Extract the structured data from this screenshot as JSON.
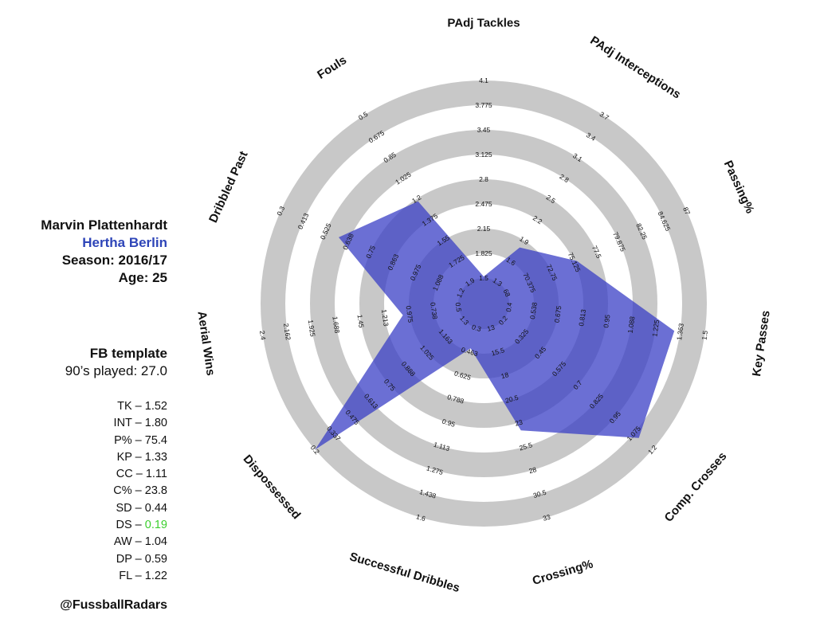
{
  "player": {
    "name": "Marvin Plattenhardt",
    "team": "Hertha Berlin",
    "season": "Season: 2016/17",
    "age": "Age: 25"
  },
  "template": {
    "name": "FB template",
    "minutes": "90’s played: 27.0"
  },
  "stats": [
    {
      "label": "TK – ",
      "value": "1.52"
    },
    {
      "label": "INT – ",
      "value": "1.80"
    },
    {
      "label": "P% – ",
      "value": "75.4"
    },
    {
      "label": "KP – ",
      "value": "1.33"
    },
    {
      "label": "CC – ",
      "value": "1.11"
    },
    {
      "label": "C% – ",
      "value": "23.8"
    },
    {
      "label": "SD – ",
      "value": "0.44"
    },
    {
      "label": "DS – ",
      "value": "0.19",
      "highlight": true
    },
    {
      "label": "AW – ",
      "value": " 1.04"
    },
    {
      "label": "DP – ",
      "value": "0.59"
    },
    {
      "label": "FL – ",
      "value": "1.22"
    }
  ],
  "credit": "@FussballRadars",
  "colors": {
    "ring_grey": "#c8c8c8",
    "ring_white": "#ffffff",
    "polygon": "#3a3fc6",
    "team": "#2e45b8",
    "highlight": "#3ccf2e"
  },
  "chart_data": {
    "type": "radar",
    "axes": [
      {
        "name": "PAdj Tackles",
        "ticks": [
          "1.5",
          "1.825",
          "2.15",
          "2.475",
          "2.8",
          "3.125",
          "3.45",
          "3.775",
          "4.1"
        ],
        "value": 1.52
      },
      {
        "name": "PAdj Interceptions",
        "ticks": [
          "1.3",
          "1.6",
          "1.9",
          "2.2",
          "2.5",
          "2.8",
          "3.1",
          "3.4",
          "3.7"
        ],
        "value": 1.8
      },
      {
        "name": "Passing%",
        "ticks": [
          "68",
          "70.375",
          "72.75",
          "75.125",
          "77.5",
          "79.875",
          "82.25",
          "84.625",
          "87"
        ],
        "value": 75.4
      },
      {
        "name": "Key Passes",
        "ticks": [
          "0.4",
          "0.538",
          "0.675",
          "0.813",
          "0.95",
          "1.088",
          "1.225",
          "1.363",
          "1.5"
        ],
        "value": 1.33
      },
      {
        "name": "Comp. Crosses",
        "ticks": [
          "0.2",
          "0.325",
          "0.45",
          "0.575",
          "0.7",
          "0.825",
          "0.95",
          "1.075",
          "1.2"
        ],
        "value": 1.11
      },
      {
        "name": "Crossing%",
        "ticks": [
          "13",
          "15.5",
          "18",
          "20.5",
          "23",
          "25.5",
          "28",
          "30.5",
          "33"
        ],
        "value": 23.8
      },
      {
        "name": "Successful Dribbles",
        "ticks": [
          "0.3",
          "0.463",
          "0.625",
          "0.788",
          "0.95",
          "1.113",
          "1.275",
          "1.438",
          "1.6"
        ],
        "value": 0.44
      },
      {
        "name": "Dispossessed",
        "ticks": [
          "1.3",
          "1.163",
          "1.025",
          "0.888",
          "0.75",
          "0.613",
          "0.475",
          "0.337",
          "0.2"
        ],
        "value": 0.19
      },
      {
        "name": "Aerial Wins",
        "ticks": [
          "0.5",
          "0.738",
          "0.975",
          "1.213",
          "1.45",
          "1.688",
          "1.925",
          "2.162",
          "2.4"
        ],
        "value": 1.04
      },
      {
        "name": "Dribbled Past",
        "ticks": [
          "1.2",
          "1.088",
          "0.975",
          "0.863",
          "0.75",
          "0.638",
          "0.525",
          "0.413",
          "0.3"
        ],
        "value": 0.59
      },
      {
        "name": "Fouls",
        "ticks": [
          "1.9",
          "1.725",
          "1.55",
          "1.375",
          "1.2",
          "1.025",
          "0.85",
          "0.675",
          "0.5"
        ],
        "value": 1.22
      }
    ]
  }
}
